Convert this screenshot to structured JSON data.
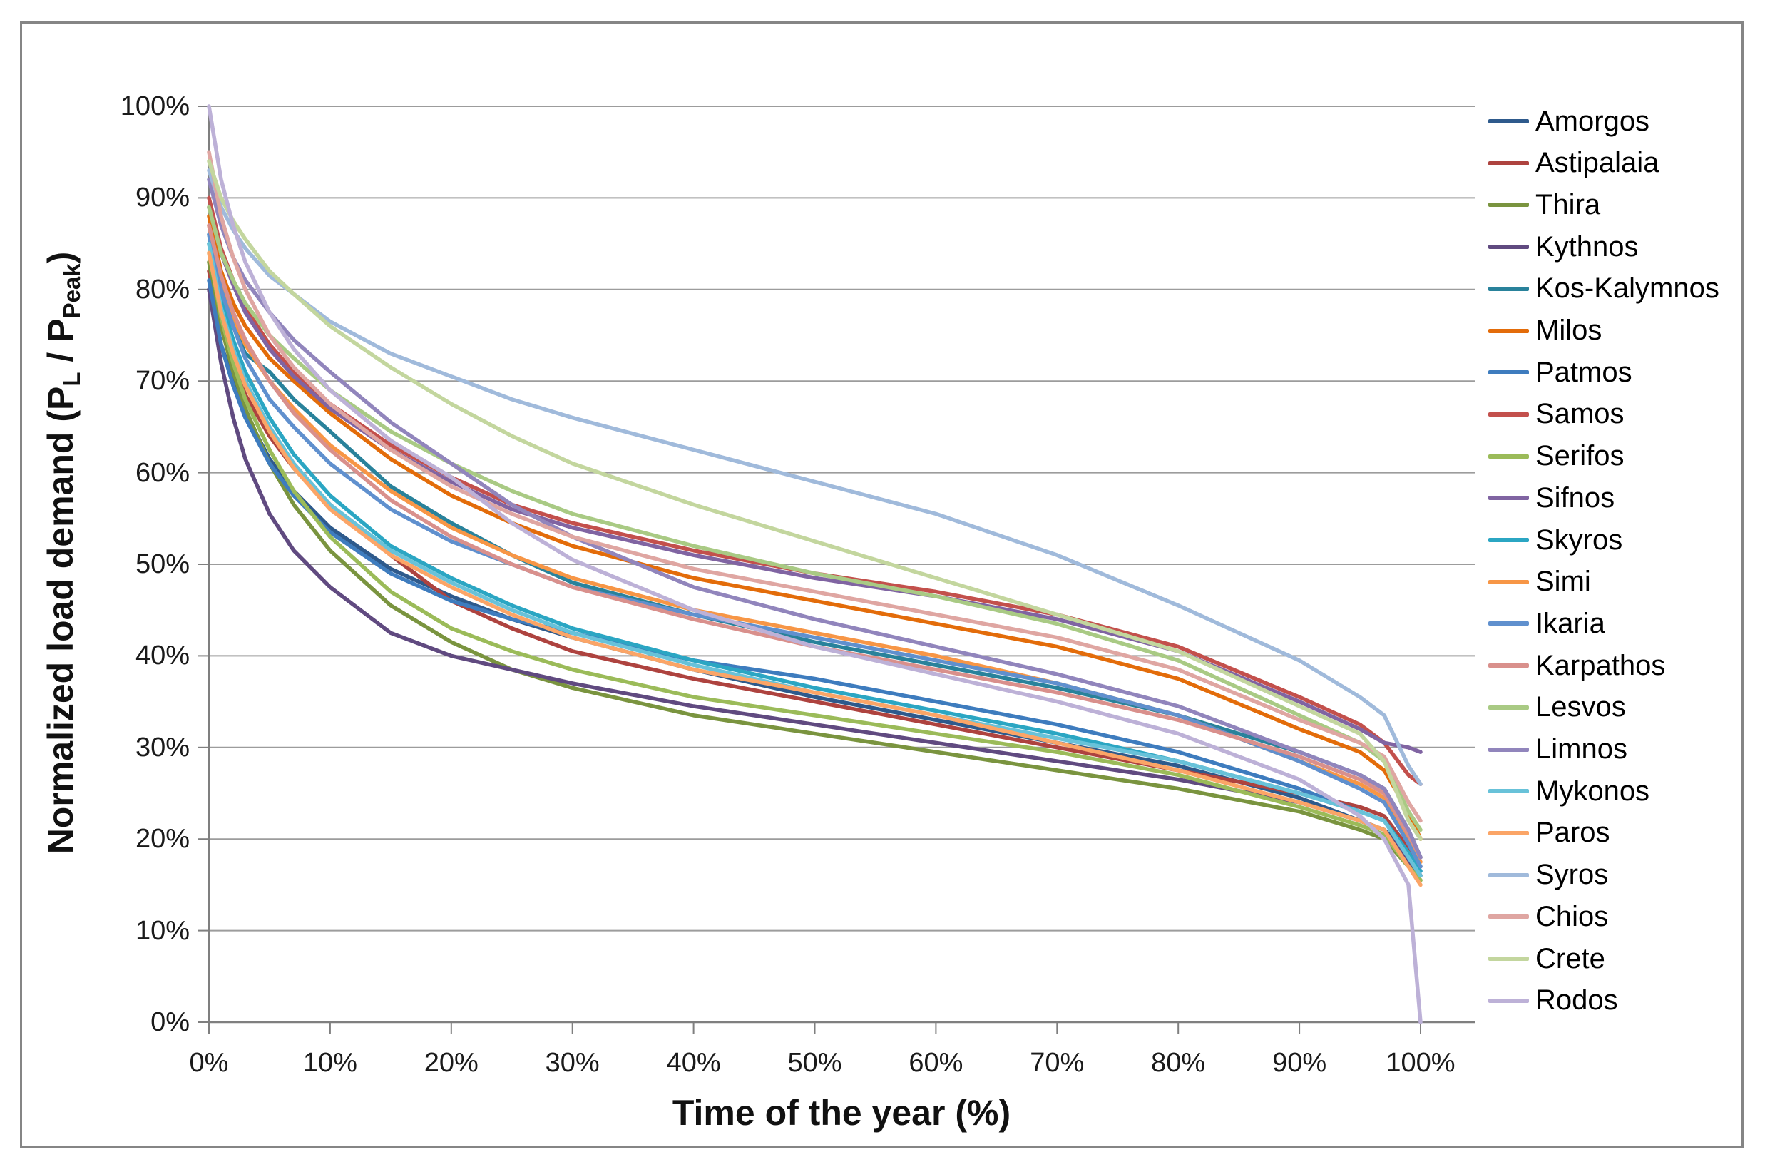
{
  "figure": {
    "background": "#FFFFFF",
    "border_color": "#858585"
  },
  "axes": {
    "x": {
      "title": "Time of the year (%)",
      "tick_labels": [
        "0%",
        "10%",
        "20%",
        "30%",
        "40%",
        "50%",
        "60%",
        "70%",
        "80%",
        "90%",
        "100%"
      ]
    },
    "y": {
      "title_parts": {
        "pre": "Normalized load demand (P",
        "sub1": "L",
        "mid": " / P",
        "sub2": "Peak",
        "post": ")"
      },
      "tick_labels": [
        "0%",
        "10%",
        "20%",
        "30%",
        "40%",
        "50%",
        "60%",
        "70%",
        "80%",
        "90%",
        "100%"
      ]
    }
  },
  "chart_data": {
    "type": "line",
    "title": "",
    "xlabel": "Time of the year (%)",
    "ylabel": "Normalized load demand (P_L / P_Peak)",
    "xlim": [
      0,
      100
    ],
    "ylim": [
      0,
      100
    ],
    "units": "percent",
    "grid": "horizontal",
    "legend_position": "right",
    "x": [
      0,
      1,
      2,
      3,
      5,
      7,
      10,
      15,
      20,
      25,
      30,
      40,
      50,
      60,
      70,
      80,
      90,
      95,
      97,
      99,
      100
    ],
    "series": [
      {
        "name": "Amorgos",
        "color": "#2E5A8C",
        "values": [
          80,
          74,
          70,
          66.5,
          61.5,
          58,
          54,
          49.5,
          46.5,
          44,
          42,
          38.5,
          35.5,
          33,
          30.5,
          28,
          24.5,
          22,
          21,
          18.5,
          16
        ]
      },
      {
        "name": "Astipalaia",
        "color": "#AE433F",
        "values": [
          82,
          76,
          72,
          68.5,
          64,
          60.5,
          56.5,
          51,
          46,
          43,
          40.5,
          37.5,
          35,
          32.5,
          30,
          27.5,
          25,
          23.5,
          22.5,
          19,
          17
        ]
      },
      {
        "name": "Thira",
        "color": "#7A943F",
        "values": [
          83,
          76,
          71,
          67,
          61,
          56.5,
          51.5,
          45.5,
          41.5,
          38.5,
          36.5,
          33.5,
          31.5,
          29.5,
          27.5,
          25.5,
          23,
          21,
          20,
          17,
          15.5
        ]
      },
      {
        "name": "Kythnos",
        "color": "#604A80",
        "values": [
          80,
          72,
          66,
          61.5,
          55.5,
          51.5,
          47.5,
          42.5,
          40,
          38.5,
          37,
          34.5,
          32.5,
          30.5,
          28.5,
          26.5,
          24,
          22,
          21,
          17.5,
          16
        ]
      },
      {
        "name": "Kos-Kalymnos",
        "color": "#29829B",
        "values": [
          85,
          79.5,
          76,
          73,
          71,
          68,
          64.5,
          58.5,
          54.5,
          51,
          48,
          44.5,
          41.5,
          39,
          36.5,
          33.5,
          29.5,
          27,
          25.5,
          21,
          18
        ]
      },
      {
        "name": "Milos",
        "color": "#E36C0A",
        "values": [
          88,
          82,
          78.5,
          76,
          72.5,
          70,
          66.5,
          61.5,
          57.5,
          54.5,
          52,
          48.5,
          46,
          43.5,
          41,
          37.5,
          32,
          29.5,
          27.5,
          23,
          20
        ]
      },
      {
        "name": "Patmos",
        "color": "#3E7CBE",
        "values": [
          81,
          74,
          69.5,
          66,
          61,
          57.5,
          53.5,
          49,
          46,
          44,
          42.5,
          39.5,
          37.5,
          35,
          32.5,
          29.5,
          25.5,
          23,
          22,
          18.5,
          16.5
        ]
      },
      {
        "name": "Samos",
        "color": "#C3504C",
        "values": [
          90,
          84.5,
          81,
          78,
          74,
          71,
          67.5,
          63,
          59.5,
          56.5,
          54.5,
          51.5,
          49,
          47,
          44.5,
          41,
          35.5,
          32.5,
          30.5,
          27,
          26
        ]
      },
      {
        "name": "Serifos",
        "color": "#9BBB59",
        "values": [
          84,
          77,
          72,
          68,
          62.5,
          58,
          53,
          47,
          43,
          40.5,
          38.5,
          35.5,
          33.5,
          31.5,
          29.5,
          27,
          23.5,
          21.5,
          20.5,
          17,
          15.5
        ]
      },
      {
        "name": "Sifnos",
        "color": "#8064A2",
        "values": [
          89,
          84,
          80.5,
          77.5,
          73.5,
          70.5,
          67,
          62.5,
          59,
          56,
          54,
          51,
          48.5,
          46.5,
          44,
          40.5,
          35,
          32,
          30.5,
          30,
          29.5
        ]
      },
      {
        "name": "Skyros",
        "color": "#2BA6C3",
        "values": [
          86,
          79,
          74.5,
          71,
          66,
          62,
          57.5,
          52,
          48.5,
          45.5,
          43,
          39.5,
          36.5,
          34,
          31.5,
          28.5,
          25,
          23,
          22,
          18.5,
          16.5
        ]
      },
      {
        "name": "Simi",
        "color": "#F79646",
        "values": [
          87,
          81,
          77,
          74,
          70,
          67,
          63,
          58,
          54,
          51,
          48.5,
          45,
          42.5,
          40,
          37,
          33.5,
          28.5,
          26,
          24.5,
          20,
          17.5
        ]
      },
      {
        "name": "Ikaria",
        "color": "#6090CE",
        "values": [
          86,
          80,
          76,
          72.5,
          68,
          65,
          61,
          56,
          52.5,
          50,
          47.5,
          44.5,
          42,
          39.5,
          37,
          33.5,
          28.5,
          25.5,
          24,
          19.5,
          17
        ]
      },
      {
        "name": "Karpathos",
        "color": "#D9908C",
        "values": [
          87,
          81.5,
          77.5,
          74.5,
          70,
          66.5,
          62.5,
          57,
          53,
          50,
          47.5,
          44,
          41,
          38.5,
          36,
          33,
          29,
          26.5,
          25,
          20.5,
          18
        ]
      },
      {
        "name": "Lesvos",
        "color": "#A9CA84",
        "values": [
          89,
          84,
          81,
          78.5,
          75,
          72.5,
          69,
          64.5,
          61,
          58,
          55.5,
          52,
          49,
          46.5,
          43.5,
          39.5,
          33.5,
          30.5,
          28.5,
          23,
          21
        ]
      },
      {
        "name": "Limnos",
        "color": "#9185BC",
        "values": [
          92,
          87,
          83.5,
          81,
          77.5,
          74.5,
          71,
          65.5,
          61,
          56.5,
          53,
          47.5,
          44,
          41,
          38,
          34.5,
          29.5,
          27,
          25.5,
          21,
          18
        ]
      },
      {
        "name": "Mykonos",
        "color": "#68C2D9",
        "values": [
          85,
          78,
          73.5,
          70,
          65,
          61,
          56.5,
          51.5,
          48,
          45,
          42.5,
          39,
          36,
          33.5,
          31,
          28.5,
          25,
          23,
          22,
          18,
          16
        ]
      },
      {
        "name": "Paros",
        "color": "#FBA567",
        "values": [
          84,
          77.5,
          73,
          69.5,
          64.5,
          60.5,
          56,
          51,
          47.5,
          44.5,
          42,
          38.5,
          36,
          33.5,
          30.5,
          27.5,
          24,
          22,
          21,
          17,
          15
        ]
      },
      {
        "name": "Syros",
        "color": "#A0BADB",
        "values": [
          93,
          89,
          86.5,
          84.5,
          81.5,
          79.5,
          76.5,
          73,
          70.5,
          68,
          66,
          62.5,
          59,
          55.5,
          51,
          45.5,
          39.5,
          35.5,
          33.5,
          28,
          26
        ]
      },
      {
        "name": "Chios",
        "color": "#DFA6A2",
        "values": [
          95,
          88,
          83.5,
          80,
          75,
          71.5,
          67.5,
          62.5,
          58.5,
          55.5,
          53,
          49.5,
          47,
          44.5,
          42,
          38.5,
          33,
          30.5,
          29,
          24,
          22
        ]
      },
      {
        "name": "Crete",
        "color": "#C3D69E",
        "values": [
          94,
          90,
          87.5,
          85.5,
          82,
          79.5,
          76,
          71.5,
          67.5,
          64,
          61,
          56.5,
          52.5,
          48.5,
          44.5,
          40.5,
          34.5,
          31.5,
          28.5,
          22,
          20
        ]
      },
      {
        "name": "Rodos",
        "color": "#BDB1D7",
        "values": [
          100,
          92,
          87,
          83,
          77.5,
          73.5,
          69,
          63.5,
          59.5,
          54.5,
          50.5,
          45,
          41,
          38,
          35,
          31.5,
          26.5,
          22.5,
          20,
          15,
          0
        ]
      }
    ]
  },
  "style": {
    "gridline_color": "#9C9C9C",
    "axis_color": "#7F7F7F",
    "tick_text_color": "#1a1a1a",
    "series_stroke_width": 5.5
  }
}
